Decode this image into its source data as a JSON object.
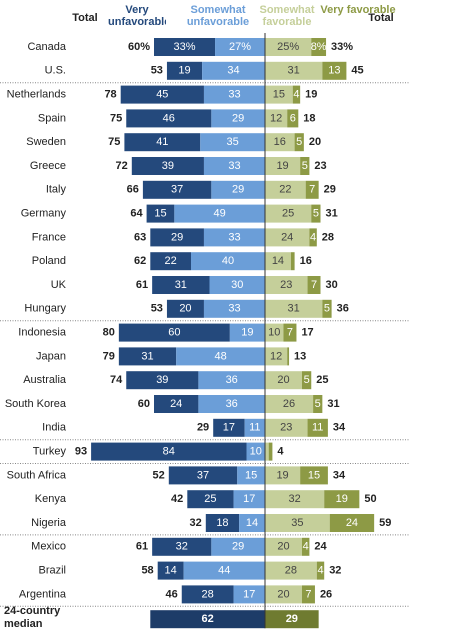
{
  "chart_data": {
    "type": "diverging-bar",
    "categories": [
      "Canada",
      "U.S.",
      "Netherlands",
      "Spain",
      "Sweden",
      "Greece",
      "Italy",
      "Germany",
      "France",
      "Poland",
      "UK",
      "Hungary",
      "Indonesia",
      "Japan",
      "Australia",
      "South Korea",
      "India",
      "Turkey",
      "South Africa",
      "Kenya",
      "Nigeria",
      "Mexico",
      "Brazil",
      "Argentina"
    ],
    "series": [
      {
        "name": "Very unfavorable",
        "color": "#24497c",
        "side": "unfavorable",
        "values": [
          33,
          19,
          45,
          46,
          41,
          39,
          37,
          15,
          29,
          22,
          31,
          20,
          60,
          31,
          39,
          24,
          17,
          84,
          37,
          25,
          18,
          32,
          14,
          28
        ],
        "value_labels": [
          "33%",
          null,
          null,
          null,
          null,
          null,
          null,
          null,
          null,
          null,
          null,
          null,
          null,
          null,
          null,
          null,
          null,
          null,
          null,
          null,
          null,
          null,
          null,
          null
        ]
      },
      {
        "name": "Somewhat unfavorable",
        "color": "#6b9ed8",
        "side": "unfavorable",
        "values": [
          27,
          34,
          33,
          29,
          35,
          33,
          29,
          49,
          33,
          40,
          30,
          33,
          19,
          48,
          36,
          36,
          11,
          10,
          15,
          17,
          14,
          29,
          44,
          17
        ],
        "value_labels": [
          "27%",
          null,
          null,
          null,
          null,
          null,
          null,
          null,
          null,
          null,
          null,
          null,
          null,
          null,
          null,
          null,
          null,
          null,
          null,
          null,
          null,
          null,
          null,
          null
        ]
      },
      {
        "name": "Somewhat favorable",
        "color": "#c5cf9a",
        "side": "favorable",
        "values": [
          25,
          31,
          15,
          12,
          16,
          19,
          22,
          25,
          24,
          14,
          23,
          31,
          10,
          12,
          20,
          26,
          23,
          2,
          19,
          32,
          35,
          20,
          28,
          20
        ],
        "value_labels": [
          "25%",
          null,
          null,
          null,
          null,
          null,
          null,
          null,
          null,
          null,
          null,
          null,
          null,
          null,
          null,
          null,
          null,
          null,
          null,
          null,
          null,
          null,
          null,
          null
        ]
      },
      {
        "name": "Very favorable",
        "color": "#8d9a45",
        "side": "favorable",
        "values": [
          8,
          13,
          4,
          6,
          5,
          5,
          7,
          5,
          4,
          2,
          7,
          5,
          7,
          1,
          5,
          5,
          11,
          2,
          15,
          19,
          24,
          4,
          4,
          7
        ],
        "value_labels": [
          "8%",
          null,
          null,
          null,
          null,
          null,
          null,
          null,
          null,
          null,
          null,
          null,
          null,
          null,
          null,
          null,
          null,
          null,
          null,
          null,
          null,
          null,
          null,
          null
        ]
      }
    ],
    "unfavorable_total": {
      "name": "Total",
      "values": [
        60,
        53,
        78,
        75,
        75,
        72,
        66,
        64,
        63,
        62,
        61,
        53,
        80,
        79,
        74,
        60,
        29,
        93,
        52,
        42,
        32,
        61,
        58,
        46
      ],
      "value_labels": [
        "60%",
        null,
        null,
        null,
        null,
        null,
        null,
        null,
        null,
        null,
        null,
        null,
        null,
        null,
        null,
        null,
        null,
        null,
        null,
        null,
        null,
        null,
        null,
        null
      ]
    },
    "favorable_total": {
      "name": "Total",
      "values": [
        33,
        45,
        19,
        18,
        20,
        23,
        29,
        31,
        28,
        16,
        30,
        36,
        17,
        13,
        25,
        31,
        34,
        4,
        34,
        50,
        59,
        24,
        32,
        26
      ],
      "value_labels": [
        "33%",
        null,
        null,
        null,
        null,
        null,
        null,
        null,
        null,
        null,
        null,
        null,
        null,
        null,
        null,
        null,
        null,
        null,
        null,
        null,
        null,
        null,
        null,
        null
      ]
    },
    "median": {
      "label": "24-country median",
      "unfavorable": 62,
      "favorable": 29,
      "unfavorable_color": "#1d3c68",
      "favorable_color": "#6f7b30"
    }
  }
}
